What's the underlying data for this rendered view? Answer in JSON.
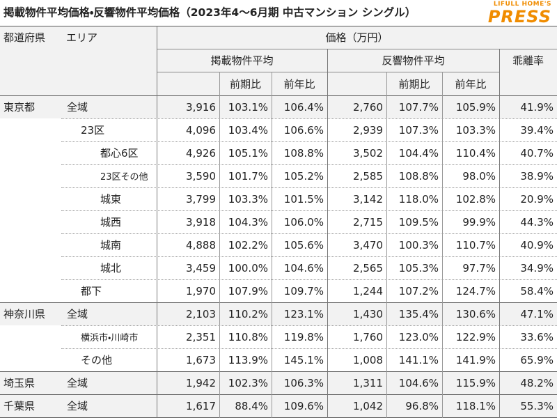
{
  "header": {
    "title": "掲載物件平均価格・反響物件平均価格（2023年4～6月期 中古マンション シングル）",
    "logo_top": "LIFULL HOME'S",
    "logo_main": "PRESS"
  },
  "table": {
    "columns": {
      "prefecture": "都道府県",
      "area": "エリア",
      "price": "価格（万円）",
      "listed": "掲載物件平均",
      "response": "反響物件平均",
      "gap": "乖離率",
      "listed_sub": [
        "前期比",
        "前年比"
      ],
      "response_sub": [
        "前期比",
        "前年比"
      ]
    },
    "groups": [
      {
        "prefecture": "東京都",
        "rows": [
          {
            "area": "全域",
            "values": [
              "3,916",
              "103.1%",
              "106.4%",
              "2,760",
              "107.7%",
              "105.9%",
              "41.9%"
            ]
          },
          {
            "area": "23区",
            "values": [
              "4,096",
              "103.4%",
              "106.6%",
              "2,939",
              "107.3%",
              "103.3%",
              "39.4%"
            ],
            "children": [
              {
                "area": "都心6区",
                "values": [
                  "4,926",
                  "105.1%",
                  "108.8%",
                  "3,502",
                  "104.4%",
                  "110.4%",
                  "40.7%"
                ]
              },
              {
                "area": "23区その他",
                "values": [
                  "3,590",
                  "101.7%",
                  "105.2%",
                  "2,585",
                  "108.8%",
                  "98.0%",
                  "38.9%"
                ]
              },
              {
                "area": "城東",
                "values": [
                  "3,799",
                  "103.3%",
                  "101.5%",
                  "3,142",
                  "118.0%",
                  "102.8%",
                  "20.9%"
                ]
              },
              {
                "area": "城西",
                "values": [
                  "3,918",
                  "104.3%",
                  "106.0%",
                  "2,715",
                  "109.5%",
                  "99.9%",
                  "44.3%"
                ]
              },
              {
                "area": "城南",
                "values": [
                  "4,888",
                  "102.2%",
                  "105.6%",
                  "3,470",
                  "100.3%",
                  "110.7%",
                  "40.9%"
                ]
              },
              {
                "area": "城北",
                "values": [
                  "3,459",
                  "100.0%",
                  "104.6%",
                  "2,565",
                  "105.3%",
                  "97.7%",
                  "34.9%"
                ]
              }
            ]
          },
          {
            "area": "都下",
            "values": [
              "1,970",
              "107.9%",
              "109.7%",
              "1,244",
              "107.2%",
              "124.7%",
              "58.4%"
            ]
          }
        ]
      },
      {
        "prefecture": "神奈川県",
        "rows": [
          {
            "area": "全域",
            "values": [
              "2,103",
              "110.2%",
              "123.1%",
              "1,430",
              "135.4%",
              "130.6%",
              "47.1%"
            ]
          },
          {
            "area": "横浜市・川崎市",
            "values": [
              "2,351",
              "110.8%",
              "119.8%",
              "1,760",
              "123.0%",
              "122.9%",
              "33.6%"
            ]
          },
          {
            "area": "その他",
            "values": [
              "1,673",
              "113.9%",
              "145.1%",
              "1,008",
              "141.1%",
              "141.9%",
              "65.9%"
            ]
          }
        ]
      },
      {
        "prefecture": "埼玉県",
        "rows": [
          {
            "area": "全域",
            "values": [
              "1,942",
              "102.3%",
              "106.3%",
              "1,311",
              "104.6%",
              "115.9%",
              "48.2%"
            ]
          }
        ]
      },
      {
        "prefecture": "千葉県",
        "rows": [
          {
            "area": "全域",
            "values": [
              "1,617",
              "88.4%",
              "109.6%",
              "1,042",
              "96.8%",
              "118.1%",
              "55.3%"
            ]
          }
        ]
      }
    ]
  }
}
